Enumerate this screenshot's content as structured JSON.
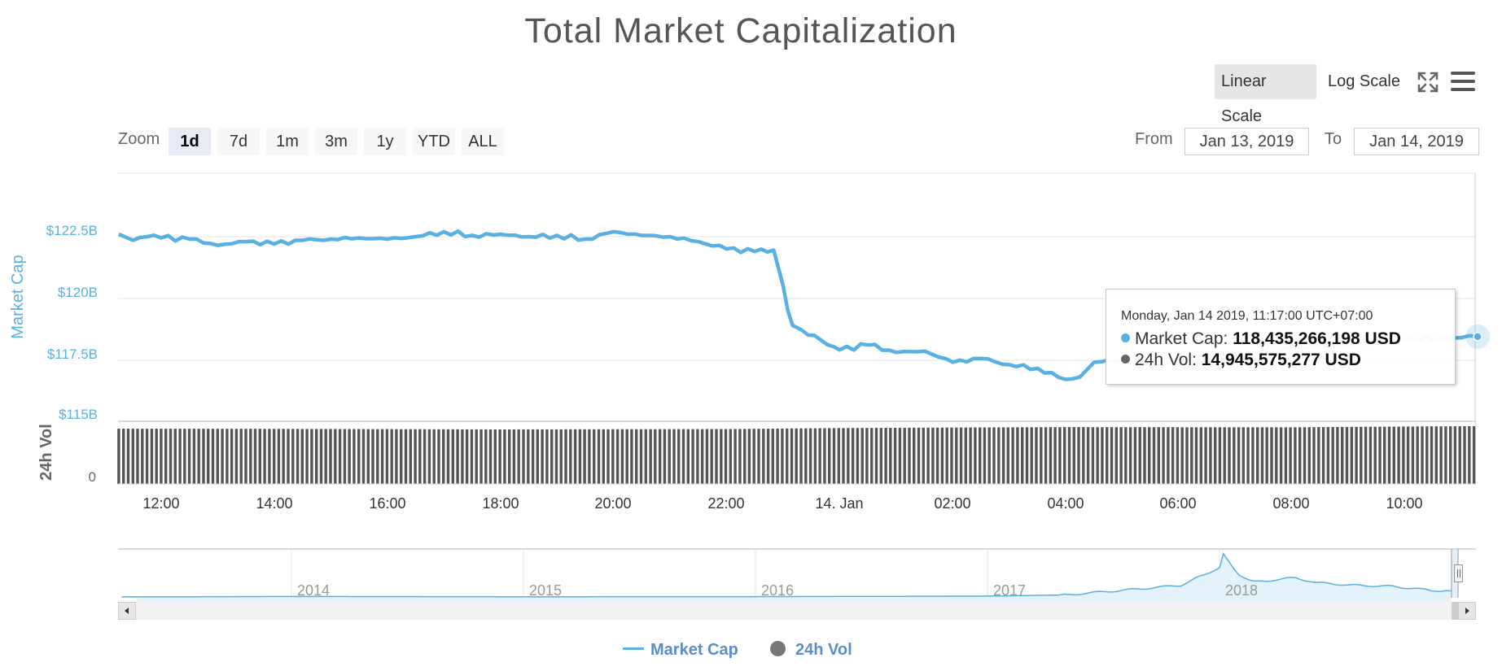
{
  "title": "Total Market Capitalization",
  "scale_buttons": {
    "linear": "Linear Scale",
    "log": "Log Scale"
  },
  "icons": {
    "fullscreen": "fullscreen-icon",
    "menu": "hamburger-menu-icon"
  },
  "zoom": {
    "label": "Zoom",
    "buttons": [
      "1d",
      "7d",
      "1m",
      "3m",
      "1y",
      "YTD",
      "ALL"
    ],
    "active": "1d"
  },
  "range": {
    "from_label": "From",
    "from_value": "Jan 13, 2019",
    "to_label": "To",
    "to_value": "Jan 14, 2019"
  },
  "tooltip": {
    "date": "Monday, Jan 14 2019, 11:17:00 UTC+07:00",
    "market_cap_label": "Market Cap",
    "market_cap_value": "118,435,266,198 USD",
    "vol_label": "24h Vol",
    "vol_value": "14,945,575,277 USD"
  },
  "legend": [
    {
      "name": "Market Cap",
      "color": "#5ab0e0"
    },
    {
      "name": "24h Vol",
      "color": "#777777"
    }
  ],
  "colors": {
    "market_cap": "#5ab0e0",
    "volume": "#555555",
    "navigator_fill": "#e3f2fb"
  },
  "chart_data": {
    "type": "line",
    "title": "Total Market Capitalization",
    "x_axis": {
      "type": "datetime",
      "tick_labels": [
        "12:00",
        "14:00",
        "16:00",
        "18:00",
        "20:00",
        "22:00",
        "14. Jan",
        "02:00",
        "04:00",
        "06:00",
        "08:00",
        "10:00"
      ]
    },
    "y_axis_market_cap": {
      "label": "Market Cap",
      "tick_labels": [
        "$115B",
        "$117.5B",
        "$120B",
        "$122.5B"
      ],
      "ylim_billions": [
        115,
        125
      ]
    },
    "y_axis_volume": {
      "label": "24h Vol",
      "tick_labels": [
        "0"
      ]
    },
    "series": [
      {
        "name": "Market Cap",
        "unit": "billion USD",
        "x": [
          "2019-01-13 11:15",
          "2019-01-13 11:30",
          "2019-01-13 11:45",
          "2019-01-13 12:00",
          "2019-01-13 12:30",
          "2019-01-13 13:00",
          "2019-01-13 13:30",
          "2019-01-13 14:00",
          "2019-01-13 14:30",
          "2019-01-13 15:00",
          "2019-01-13 15:30",
          "2019-01-13 16:00",
          "2019-01-13 16:30",
          "2019-01-13 17:00",
          "2019-01-13 17:30",
          "2019-01-13 18:00",
          "2019-01-13 18:30",
          "2019-01-13 19:00",
          "2019-01-13 19:30",
          "2019-01-13 20:00",
          "2019-01-13 20:30",
          "2019-01-13 21:00",
          "2019-01-13 21:30",
          "2019-01-13 22:00",
          "2019-01-13 22:30",
          "2019-01-13 22:50",
          "2019-01-13 23:00",
          "2019-01-13 23:05",
          "2019-01-13 23:10",
          "2019-01-13 23:20",
          "2019-01-13 23:40",
          "2019-01-14 00:00",
          "2019-01-14 00:30",
          "2019-01-14 01:00",
          "2019-01-14 01:30",
          "2019-01-14 02:00",
          "2019-01-14 02:30",
          "2019-01-14 03:00",
          "2019-01-14 03:30",
          "2019-01-14 04:00",
          "2019-01-14 04:15",
          "2019-01-14 04:30",
          "2019-01-14 05:00",
          "2019-01-14 05:30",
          "2019-01-14 06:00",
          "2019-01-14 06:30",
          "2019-01-14 07:00",
          "2019-01-14 08:00",
          "2019-01-14 09:00",
          "2019-01-14 10:00",
          "2019-01-14 11:00",
          "2019-01-14 11:17"
        ],
        "values": [
          122.6,
          122.35,
          122.5,
          122.45,
          122.4,
          122.15,
          122.3,
          122.2,
          122.35,
          122.4,
          122.45,
          122.4,
          122.5,
          122.7,
          122.55,
          122.6,
          122.5,
          122.55,
          122.4,
          122.7,
          122.55,
          122.5,
          122.3,
          122.0,
          121.9,
          121.95,
          120.5,
          119.5,
          118.9,
          118.7,
          118.3,
          117.9,
          118.1,
          117.8,
          117.85,
          117.4,
          117.55,
          117.3,
          117.15,
          116.7,
          116.8,
          117.4,
          117.5,
          117.35,
          117.55,
          117.7,
          117.4,
          118.0,
          118.1,
          118.3,
          118.4,
          118.44
        ]
      },
      {
        "name": "24h Vol",
        "unit": "billion USD",
        "note_values_estimated_relative": true,
        "x": [
          "2019-01-13 11:15",
          "2019-01-13 14:00",
          "2019-01-13 18:00",
          "2019-01-13 22:00",
          "2019-01-14 00:00",
          "2019-01-14 02:00",
          "2019-01-14 04:00",
          "2019-01-14 08:00",
          "2019-01-14 10:00",
          "2019-01-14 11:17"
        ],
        "values": [
          14.3,
          14.25,
          14.1,
          14.2,
          14.45,
          14.6,
          14.7,
          14.65,
          14.85,
          14.95
        ]
      }
    ],
    "navigator": {
      "tick_labels": [
        "2014",
        "2015",
        "2016",
        "2017",
        "2018"
      ],
      "x": [
        "2013-04",
        "2014-01",
        "2015-01",
        "2016-01",
        "2017-01",
        "2017-05",
        "2017-08",
        "2017-11",
        "2017-12",
        "2018-01",
        "2018-01-07",
        "2018-02",
        "2018-03",
        "2018-05",
        "2018-06",
        "2018-08",
        "2018-10",
        "2018-12",
        "2019-01"
      ],
      "values": [
        1.5,
        10,
        5,
        7,
        17,
        40,
        130,
        230,
        400,
        580,
        830,
        420,
        300,
        380,
        280,
        230,
        210,
        130,
        120
      ],
      "unit": "billion USD"
    },
    "tooltip_point": {
      "x": "2019-01-14 11:17",
      "market_cap": 118435266198,
      "volume": 14945575277
    },
    "grid": true
  }
}
